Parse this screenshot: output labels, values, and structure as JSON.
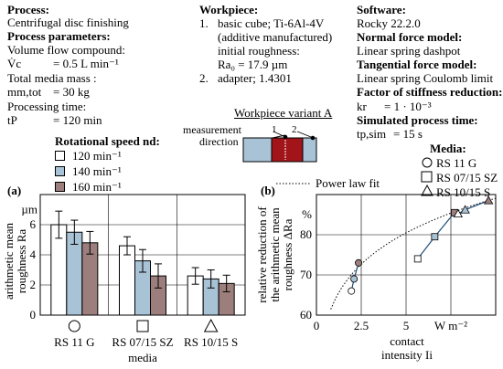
{
  "process": {
    "heading": "Process:",
    "value": "Centrifugal disc finishing",
    "params_heading": "Process parameters:",
    "flow_label": "Volume flow compound:",
    "flow_symbol": "V̇c",
    "flow_value": "=      0.5 L min⁻¹",
    "media_mass_label": "Total media mass :",
    "media_mass_symbol": "mm,tot",
    "media_mass_value": "=    30   kg",
    "time_label": "Processing time:",
    "time_symbol": "tP",
    "time_value": "=    120   min",
    "speed_heading": "Rotational speed nd:",
    "speeds": [
      {
        "label": "120    min⁻¹",
        "color": "#ffffff"
      },
      {
        "label": "140    min⁻¹",
        "color": "#a9c3d6"
      },
      {
        "label": "160    min⁻¹",
        "color": "#9c7f7c"
      }
    ]
  },
  "workpiece": {
    "heading": "Workpiece:",
    "item1_num": "1.",
    "item1_line1": "basic cube; Ti-6Al-4V",
    "item1_line2": "(additive manufactured)",
    "item1_line3": "initial roughness:",
    "item1_line4": "Ra₀ = 17.9 µm",
    "item2_num": "2.",
    "item2_line1": "adapter; 1.4301",
    "variant_title": "Workpiece variant A",
    "measurement_label_line1": "measurement",
    "measurement_label_line2": "direction",
    "marker1": "1",
    "marker2": "2"
  },
  "software": {
    "heading": "Software:",
    "value": "Rocky 22.2.0",
    "normal_heading": "Normal force model:",
    "normal_value": "Linear spring dashpot",
    "tangential_heading": "Tangential force model:",
    "tangential_value": "Linear spring Coulomb limit",
    "stiffness_heading": "Factor of stiffness reduction:",
    "stiffness_symbol": "kr",
    "stiffness_value": "=  1 · 10⁻³",
    "simtime_heading": "Simulated process time:",
    "simtime_symbol": "tp,sim",
    "simtime_value": "=  15 s"
  },
  "media_legend": {
    "heading": "Media:",
    "items": [
      {
        "shape": "circle-icon",
        "label": "RS 11 G"
      },
      {
        "shape": "square-icon",
        "label": "RS 07/15 SZ"
      },
      {
        "shape": "triangle-icon",
        "label": "RS 10/15 S"
      }
    ]
  },
  "colors": {
    "white": "#ffffff",
    "blue": "#a9c3d6",
    "brown": "#9c7f7c",
    "line_blue": "#1f4e79"
  },
  "chart_data": [
    {
      "panel": "(a)",
      "type": "bar",
      "categories": [
        "RS 11 G",
        "RS 07/15 SZ",
        "RS 10/15 S"
      ],
      "xlabel": "media",
      "ylabel_line1": "arithmetic mean",
      "ylabel_line2": "roughness Ra",
      "unit": "µm",
      "ylim": [
        0,
        8
      ],
      "yticks": [
        "0",
        "2",
        "4",
        "6"
      ],
      "series": [
        {
          "name": "120 min⁻¹",
          "color": "#ffffff",
          "values": [
            6.0,
            4.6,
            2.6
          ],
          "errors": [
            0.9,
            0.6,
            0.55
          ]
        },
        {
          "name": "140 min⁻¹",
          "color": "#a9c3d6",
          "values": [
            5.5,
            3.6,
            2.4
          ],
          "errors": [
            0.8,
            0.75,
            0.6
          ]
        },
        {
          "name": "160 min⁻¹",
          "color": "#9c7f7c",
          "values": [
            4.8,
            2.6,
            2.1
          ],
          "errors": [
            0.75,
            0.8,
            0.55
          ]
        }
      ],
      "grid": true
    },
    {
      "panel": "(b)",
      "type": "scatter",
      "xlabel_line1": "contact",
      "xlabel_line2": "intensity Ii",
      "x_unit": "W m⁻²",
      "ylabel_line1": "relative reduction of",
      "ylabel_line2": "the arithmetic mean",
      "ylabel_line3": "roughness ΔRa",
      "y_unit": "%",
      "xlim": [
        0,
        10
      ],
      "ylim": [
        60,
        90
      ],
      "xticks": [
        "0",
        "2.5",
        "5"
      ],
      "yticks": [
        "60",
        "70",
        "80"
      ],
      "fit_label": "Power law fit",
      "series": [
        {
          "name": "RS 11 G",
          "marker": "circle",
          "points": [
            {
              "x": 1.95,
              "y": 66.0,
              "color": "#ffffff"
            },
            {
              "x": 2.1,
              "y": 69.0,
              "color": "#a9c3d6"
            },
            {
              "x": 2.35,
              "y": 73.0,
              "color": "#9c7f7c"
            }
          ]
        },
        {
          "name": "RS 07/15 SZ",
          "marker": "square",
          "points": [
            {
              "x": 5.65,
              "y": 74.0,
              "color": "#ffffff"
            },
            {
              "x": 6.6,
              "y": 79.5,
              "color": "#a9c3d6"
            },
            {
              "x": 7.7,
              "y": 85.5,
              "color": "#9c7f7c"
            }
          ]
        },
        {
          "name": "RS 10/15 S",
          "marker": "triangle",
          "points": [
            {
              "x": 7.9,
              "y": 85.2,
              "color": "#ffffff"
            },
            {
              "x": 8.3,
              "y": 86.2,
              "color": "#a9c3d6"
            },
            {
              "x": 9.6,
              "y": 88.5,
              "color": "#9c7f7c"
            }
          ]
        }
      ],
      "fit": {
        "a": 63.5,
        "b": 0.147
      }
    }
  ]
}
